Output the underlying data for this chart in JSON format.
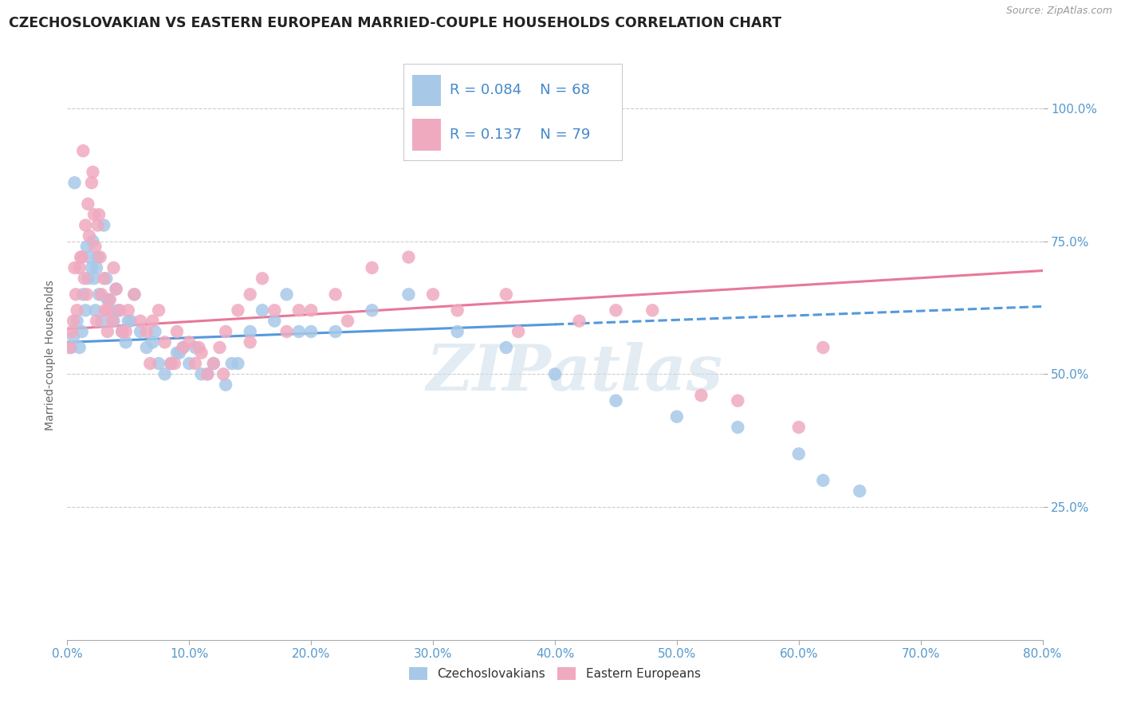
{
  "title": "CZECHOSLOVAKIAN VS EASTERN EUROPEAN MARRIED-COUPLE HOUSEHOLDS CORRELATION CHART",
  "source": "Source: ZipAtlas.com",
  "ylabel_label": "Married-couple Households",
  "legend_blue_r": "R = 0.084",
  "legend_blue_n": "N = 68",
  "legend_pink_r": "R = 0.137",
  "legend_pink_n": "N = 79",
  "legend_blue_label": "Czechoslovakians",
  "legend_pink_label": "Eastern Europeans",
  "blue_color": "#a8c8e8",
  "pink_color": "#f0aac0",
  "blue_line_color": "#5599dd",
  "pink_line_color": "#e87898",
  "stat_color": "#4488cc",
  "title_color": "#222222",
  "axis_label_color": "#5599cc",
  "watermark_color": "#ccdde8",
  "blue_slope": 0.084,
  "blue_intercept": 56.0,
  "pink_slope": 0.137,
  "pink_intercept": 58.5,
  "blue_x": [
    0.3,
    0.5,
    0.8,
    1.0,
    1.2,
    1.3,
    1.5,
    1.7,
    1.8,
    2.0,
    2.1,
    2.2,
    2.3,
    2.5,
    2.6,
    2.8,
    3.0,
    3.2,
    3.4,
    3.6,
    3.8,
    4.0,
    4.2,
    4.5,
    4.8,
    5.0,
    5.5,
    6.0,
    6.5,
    7.0,
    7.5,
    8.0,
    8.5,
    9.0,
    9.5,
    10.0,
    10.5,
    11.0,
    12.0,
    13.0,
    14.0,
    15.0,
    16.0,
    17.0,
    18.0,
    20.0,
    22.0,
    25.0,
    28.0,
    32.0,
    36.0,
    40.0,
    45.0,
    50.0,
    55.0,
    60.0,
    62.0,
    65.0,
    0.6,
    1.6,
    2.4,
    3.3,
    5.2,
    7.2,
    9.2,
    11.5,
    13.5,
    19.0
  ],
  "blue_y": [
    55.0,
    57.0,
    60.0,
    55.0,
    58.0,
    65.0,
    62.0,
    68.0,
    72.0,
    70.0,
    75.0,
    68.0,
    62.0,
    72.0,
    65.0,
    60.0,
    78.0,
    68.0,
    64.0,
    62.0,
    60.0,
    66.0,
    62.0,
    58.0,
    56.0,
    60.0,
    65.0,
    58.0,
    55.0,
    56.0,
    52.0,
    50.0,
    52.0,
    54.0,
    55.0,
    52.0,
    55.0,
    50.0,
    52.0,
    48.0,
    52.0,
    58.0,
    62.0,
    60.0,
    65.0,
    58.0,
    58.0,
    62.0,
    65.0,
    58.0,
    55.0,
    50.0,
    45.0,
    42.0,
    40.0,
    35.0,
    30.0,
    28.0,
    86.0,
    74.0,
    70.0,
    64.0,
    60.0,
    58.0,
    54.0,
    50.0,
    52.0,
    58.0
  ],
  "pink_x": [
    0.2,
    0.4,
    0.5,
    0.7,
    0.8,
    1.0,
    1.2,
    1.4,
    1.5,
    1.7,
    1.8,
    2.0,
    2.1,
    2.2,
    2.3,
    2.5,
    2.7,
    2.8,
    3.0,
    3.1,
    3.3,
    3.5,
    3.7,
    4.0,
    4.3,
    4.5,
    5.0,
    5.5,
    6.0,
    6.5,
    7.0,
    7.5,
    8.0,
    8.5,
    9.0,
    9.5,
    10.0,
    10.5,
    11.0,
    11.5,
    12.0,
    12.5,
    13.0,
    14.0,
    15.0,
    16.0,
    17.0,
    18.0,
    20.0,
    22.0,
    25.0,
    28.0,
    32.0,
    36.0,
    42.0,
    48.0,
    55.0,
    62.0,
    0.6,
    1.1,
    1.6,
    2.4,
    3.3,
    4.8,
    6.8,
    8.8,
    10.8,
    12.8,
    15.0,
    19.0,
    23.0,
    30.0,
    37.0,
    45.0,
    52.0,
    60.0,
    1.3,
    2.6,
    3.8
  ],
  "pink_y": [
    55.0,
    58.0,
    60.0,
    65.0,
    62.0,
    70.0,
    72.0,
    68.0,
    78.0,
    82.0,
    76.0,
    86.0,
    88.0,
    80.0,
    74.0,
    78.0,
    72.0,
    65.0,
    68.0,
    62.0,
    58.0,
    64.0,
    60.0,
    66.0,
    62.0,
    58.0,
    62.0,
    65.0,
    60.0,
    58.0,
    60.0,
    62.0,
    56.0,
    52.0,
    58.0,
    55.0,
    56.0,
    52.0,
    54.0,
    50.0,
    52.0,
    55.0,
    58.0,
    62.0,
    65.0,
    68.0,
    62.0,
    58.0,
    62.0,
    65.0,
    70.0,
    72.0,
    62.0,
    65.0,
    60.0,
    62.0,
    45.0,
    55.0,
    70.0,
    72.0,
    65.0,
    60.0,
    62.0,
    58.0,
    52.0,
    52.0,
    55.0,
    50.0,
    56.0,
    62.0,
    60.0,
    65.0,
    58.0,
    62.0,
    46.0,
    40.0,
    92.0,
    80.0,
    70.0
  ],
  "xmin": 0.0,
  "xmax": 80.0,
  "ymin": 0.0,
  "ymax": 107.0,
  "yticks": [
    25.0,
    50.0,
    75.0,
    100.0
  ],
  "xtick_positions": [
    0.0,
    10.0,
    20.0,
    30.0,
    40.0,
    50.0,
    60.0,
    70.0,
    80.0
  ]
}
